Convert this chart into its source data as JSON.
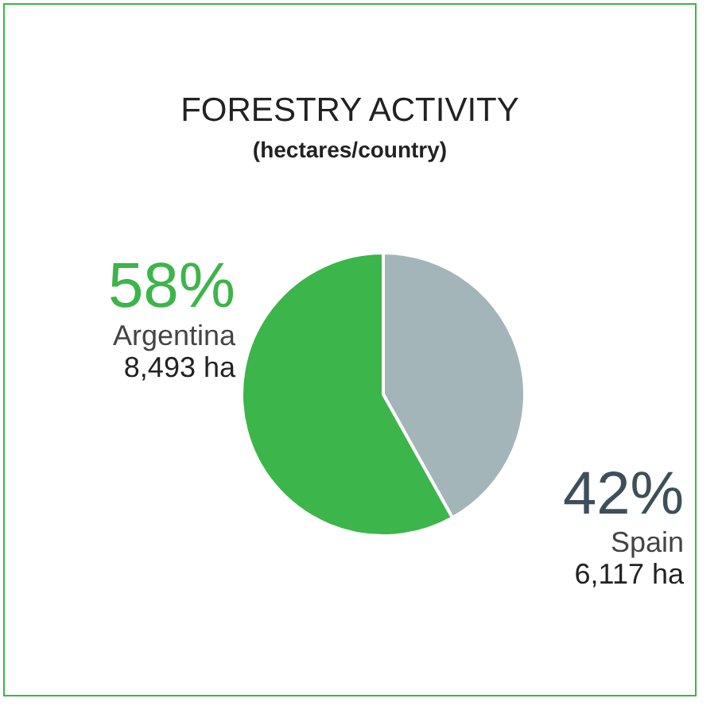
{
  "chart_data": {
    "type": "pie",
    "title": "FORESTRY ACTIVITY",
    "subtitle": "(hectares/country)",
    "categories": [
      "Spain",
      "Argentina"
    ],
    "values": [
      6117,
      8493
    ],
    "colors": [
      "#a3b5b8",
      "#3cb54a"
    ],
    "value_labels": [
      "6,117 ha",
      "8,493 ha"
    ],
    "annotations": [
      {
        "text": "42%",
        "x": "Spain"
      },
      {
        "text": "58%",
        "x": "Argentina"
      }
    ],
    "legend": false
  }
}
